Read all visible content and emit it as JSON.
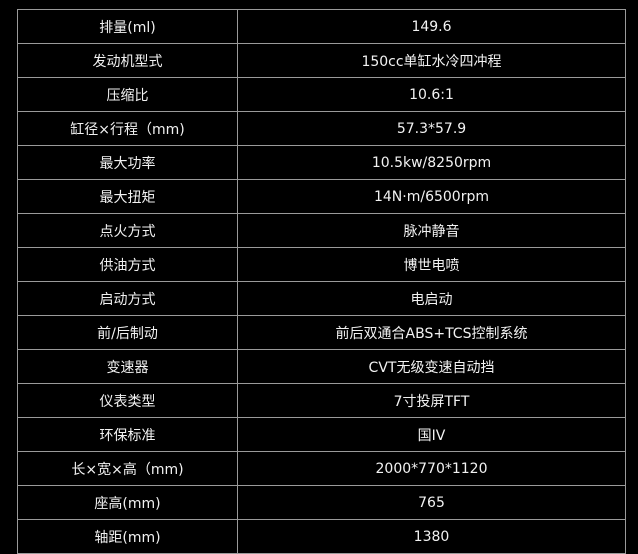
{
  "spec_table": {
    "rows": [
      {
        "label": "排量(ml)",
        "value": "149.6"
      },
      {
        "label": "发动机型式",
        "value": "150cc单缸水冷四冲程"
      },
      {
        "label": "压缩比",
        "value": "10.6:1"
      },
      {
        "label": "缸径×行程（mm)",
        "value": "57.3*57.9"
      },
      {
        "label": "最大功率",
        "value": "10.5kw/8250rpm"
      },
      {
        "label": "最大扭矩",
        "value": "14N·m/6500rpm"
      },
      {
        "label": "点火方式",
        "value": "脉冲静音"
      },
      {
        "label": "供油方式",
        "value": "博世电喷"
      },
      {
        "label": "启动方式",
        "value": "电启动"
      },
      {
        "label": "前/后制动",
        "value": "前后双通合ABS+TCS控制系统"
      },
      {
        "label": "变速器",
        "value": "CVT无级变速自动挡"
      },
      {
        "label": "仪表类型",
        "value": "7寸投屏TFT"
      },
      {
        "label": "环保标准",
        "value": "国IV"
      },
      {
        "label": "长×宽×高（mm)",
        "value": "2000*770*1120"
      },
      {
        "label": "座高(mm)",
        "value": "765"
      },
      {
        "label": "轴距(mm)",
        "value": "1380"
      }
    ]
  }
}
